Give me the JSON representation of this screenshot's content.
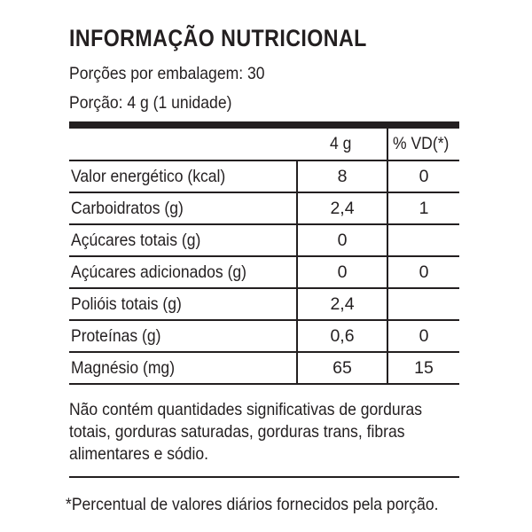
{
  "title": "INFORMAÇÃO NUTRICIONAL",
  "servings_per_package": "Porções por embalagem: 30",
  "serving_size": "Porção: 4 g (1 unidade)",
  "table": {
    "headers": [
      "",
      "4 g",
      "% VD(*)"
    ],
    "rows": [
      {
        "label": "Valor energético (kcal)",
        "amount": "8",
        "dv": "0",
        "indent": false
      },
      {
        "label": "Carboidratos (g)",
        "amount": "2,4",
        "dv": "1",
        "indent": false
      },
      {
        "label": "Açúcares totais (g)",
        "amount": "0",
        "dv": "",
        "indent": true
      },
      {
        "label": "Açúcares adicionados (g)",
        "amount": "0",
        "dv": "0",
        "indent": true
      },
      {
        "label": "Polióis totais (g)",
        "amount": "2,4",
        "dv": "",
        "indent": false
      },
      {
        "label": "Proteínas (g)",
        "amount": "0,6",
        "dv": "0",
        "indent": false
      },
      {
        "label": "Magnésio (mg)",
        "amount": "65",
        "dv": "15",
        "indent": false
      }
    ]
  },
  "note": "Não contém quantidades significativas de gorduras totais, gorduras saturadas, gorduras trans, fibras alimentares e sódio.",
  "footnote": "*Percentual de valores diários fornecidos pela porção."
}
